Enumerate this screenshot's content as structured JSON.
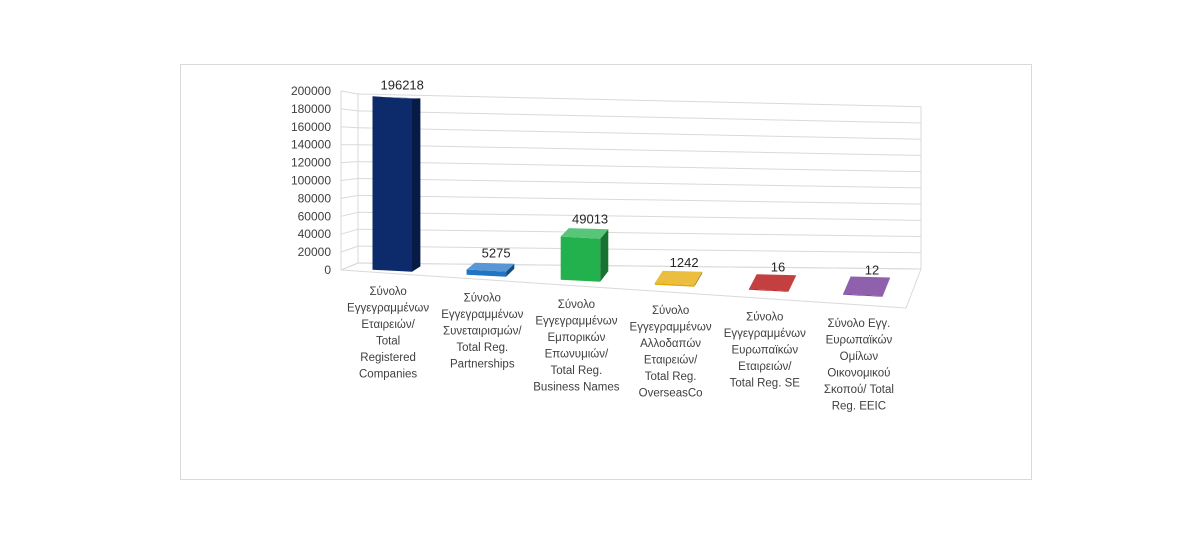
{
  "chart_data": {
    "type": "bar",
    "three_d": true,
    "title": "",
    "xlabel": "",
    "ylabel": "",
    "ylim": [
      0,
      200000
    ],
    "yticks": [
      0,
      20000,
      40000,
      60000,
      80000,
      100000,
      120000,
      140000,
      160000,
      180000,
      200000
    ],
    "grid": true,
    "legend": "none",
    "categories": [
      "Σύνολο Εγγεγραμμένων Εταιρειών/ Total Registered Companies",
      "Σύνολο Εγγεγραμμένων Συνεταιρισμών/ Total Reg. Partnerships",
      "Σύνολο Εγγεγραμμένων Εμπορικών Επωνυμιών/ Total Reg. Business Names",
      "Σύνολο Εγγεγραμμένων Αλλοδαπών Εταιρειών/ Total Reg. OverseasCo",
      "Σύνολο Εγγεγραμμένων Ευρωπαϊκών Εταιρειών/ Total Reg. SE",
      "Σύνολο Εγγ. Ευρωπαϊκών Ομίλων Οικονομικού Σκοπού/ Total Reg. EEIC"
    ],
    "category_lines": [
      [
        "Σύνολο",
        "Εγγεγραμμένων",
        "Εταιρειών/",
        "Total",
        "Registered",
        "Companies"
      ],
      [
        "Σύνολο",
        "Εγγεγραμμένων",
        "Συνεταιρισμών/",
        "Total Reg.",
        "Partnerships"
      ],
      [
        "Σύνολο",
        "Εγγεγραμμένων",
        "Εμπορικών",
        "Επωνυμιών/",
        "Total Reg.",
        "Business Names"
      ],
      [
        "Σύνολο",
        "Εγγεγραμμένων",
        "Αλλοδαπών",
        "Εταιρειών/",
        "Total Reg.",
        "OverseasCo"
      ],
      [
        "Σύνολο",
        "Εγγεγραμμένων",
        "Ευρωπαϊκών",
        "Εταιρειών/",
        "Total Reg. SE"
      ],
      [
        "Σύνολο Εγγ.",
        "Ευρωπαϊκών",
        "Ομίλων",
        "Οικονομικού",
        "Σκοπού/ Total",
        "Reg. EEIC"
      ]
    ],
    "values": [
      196218,
      5275,
      49013,
      1242,
      16,
      12
    ],
    "data_labels": [
      "196218",
      "5275",
      "49013",
      "1242",
      "16",
      "12"
    ],
    "colors": [
      "#0d2a6b",
      "#1f74c4",
      "#22b14c",
      "#e6a800",
      "#b00000",
      "#6a2c91"
    ]
  }
}
